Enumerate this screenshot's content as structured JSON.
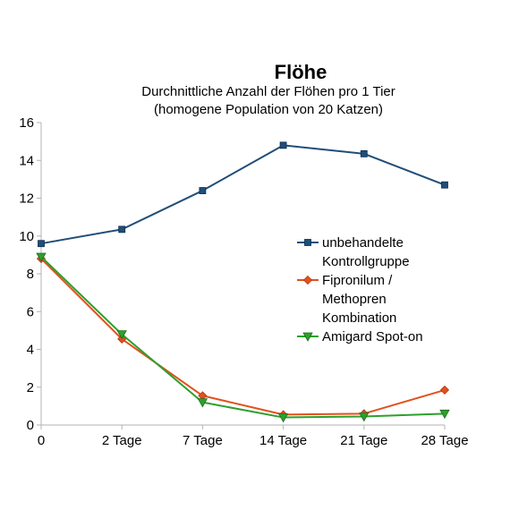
{
  "chart_data": {
    "type": "line",
    "title": "Flöhe",
    "subtitle_lines": [
      "Durchnittliche Anzahl der Flöhen pro 1 Tier",
      "(homogene Population von 20 Katzen)"
    ],
    "categories": [
      "0",
      "2 Tage",
      "7 Tage",
      "14 Tage",
      "21 Tage",
      "28 Tage"
    ],
    "ylim": [
      0,
      16
    ],
    "yticks": [
      "0",
      "2",
      "4",
      "6",
      "8",
      "10",
      "12",
      "14",
      "16"
    ],
    "grid": false,
    "legend_position": "right",
    "series": [
      {
        "name_lines": [
          "unbehandelte",
          "Kontrollgruppe"
        ],
        "values": [
          9.6,
          10.35,
          12.4,
          14.8,
          14.35,
          12.7
        ],
        "color": "#1f4e79",
        "marker": "square"
      },
      {
        "name_lines": [
          "Fipronilum /",
          "Methopren",
          "Kombination"
        ],
        "values": [
          8.8,
          4.55,
          1.55,
          0.55,
          0.6,
          1.85
        ],
        "color": "#e2501f",
        "marker": "diamond"
      },
      {
        "name_lines": [
          "Amigard Spot-on"
        ],
        "values": [
          8.9,
          4.8,
          1.2,
          0.4,
          0.45,
          0.6
        ],
        "color": "#2ca02c",
        "marker": "triangle-down"
      }
    ]
  }
}
